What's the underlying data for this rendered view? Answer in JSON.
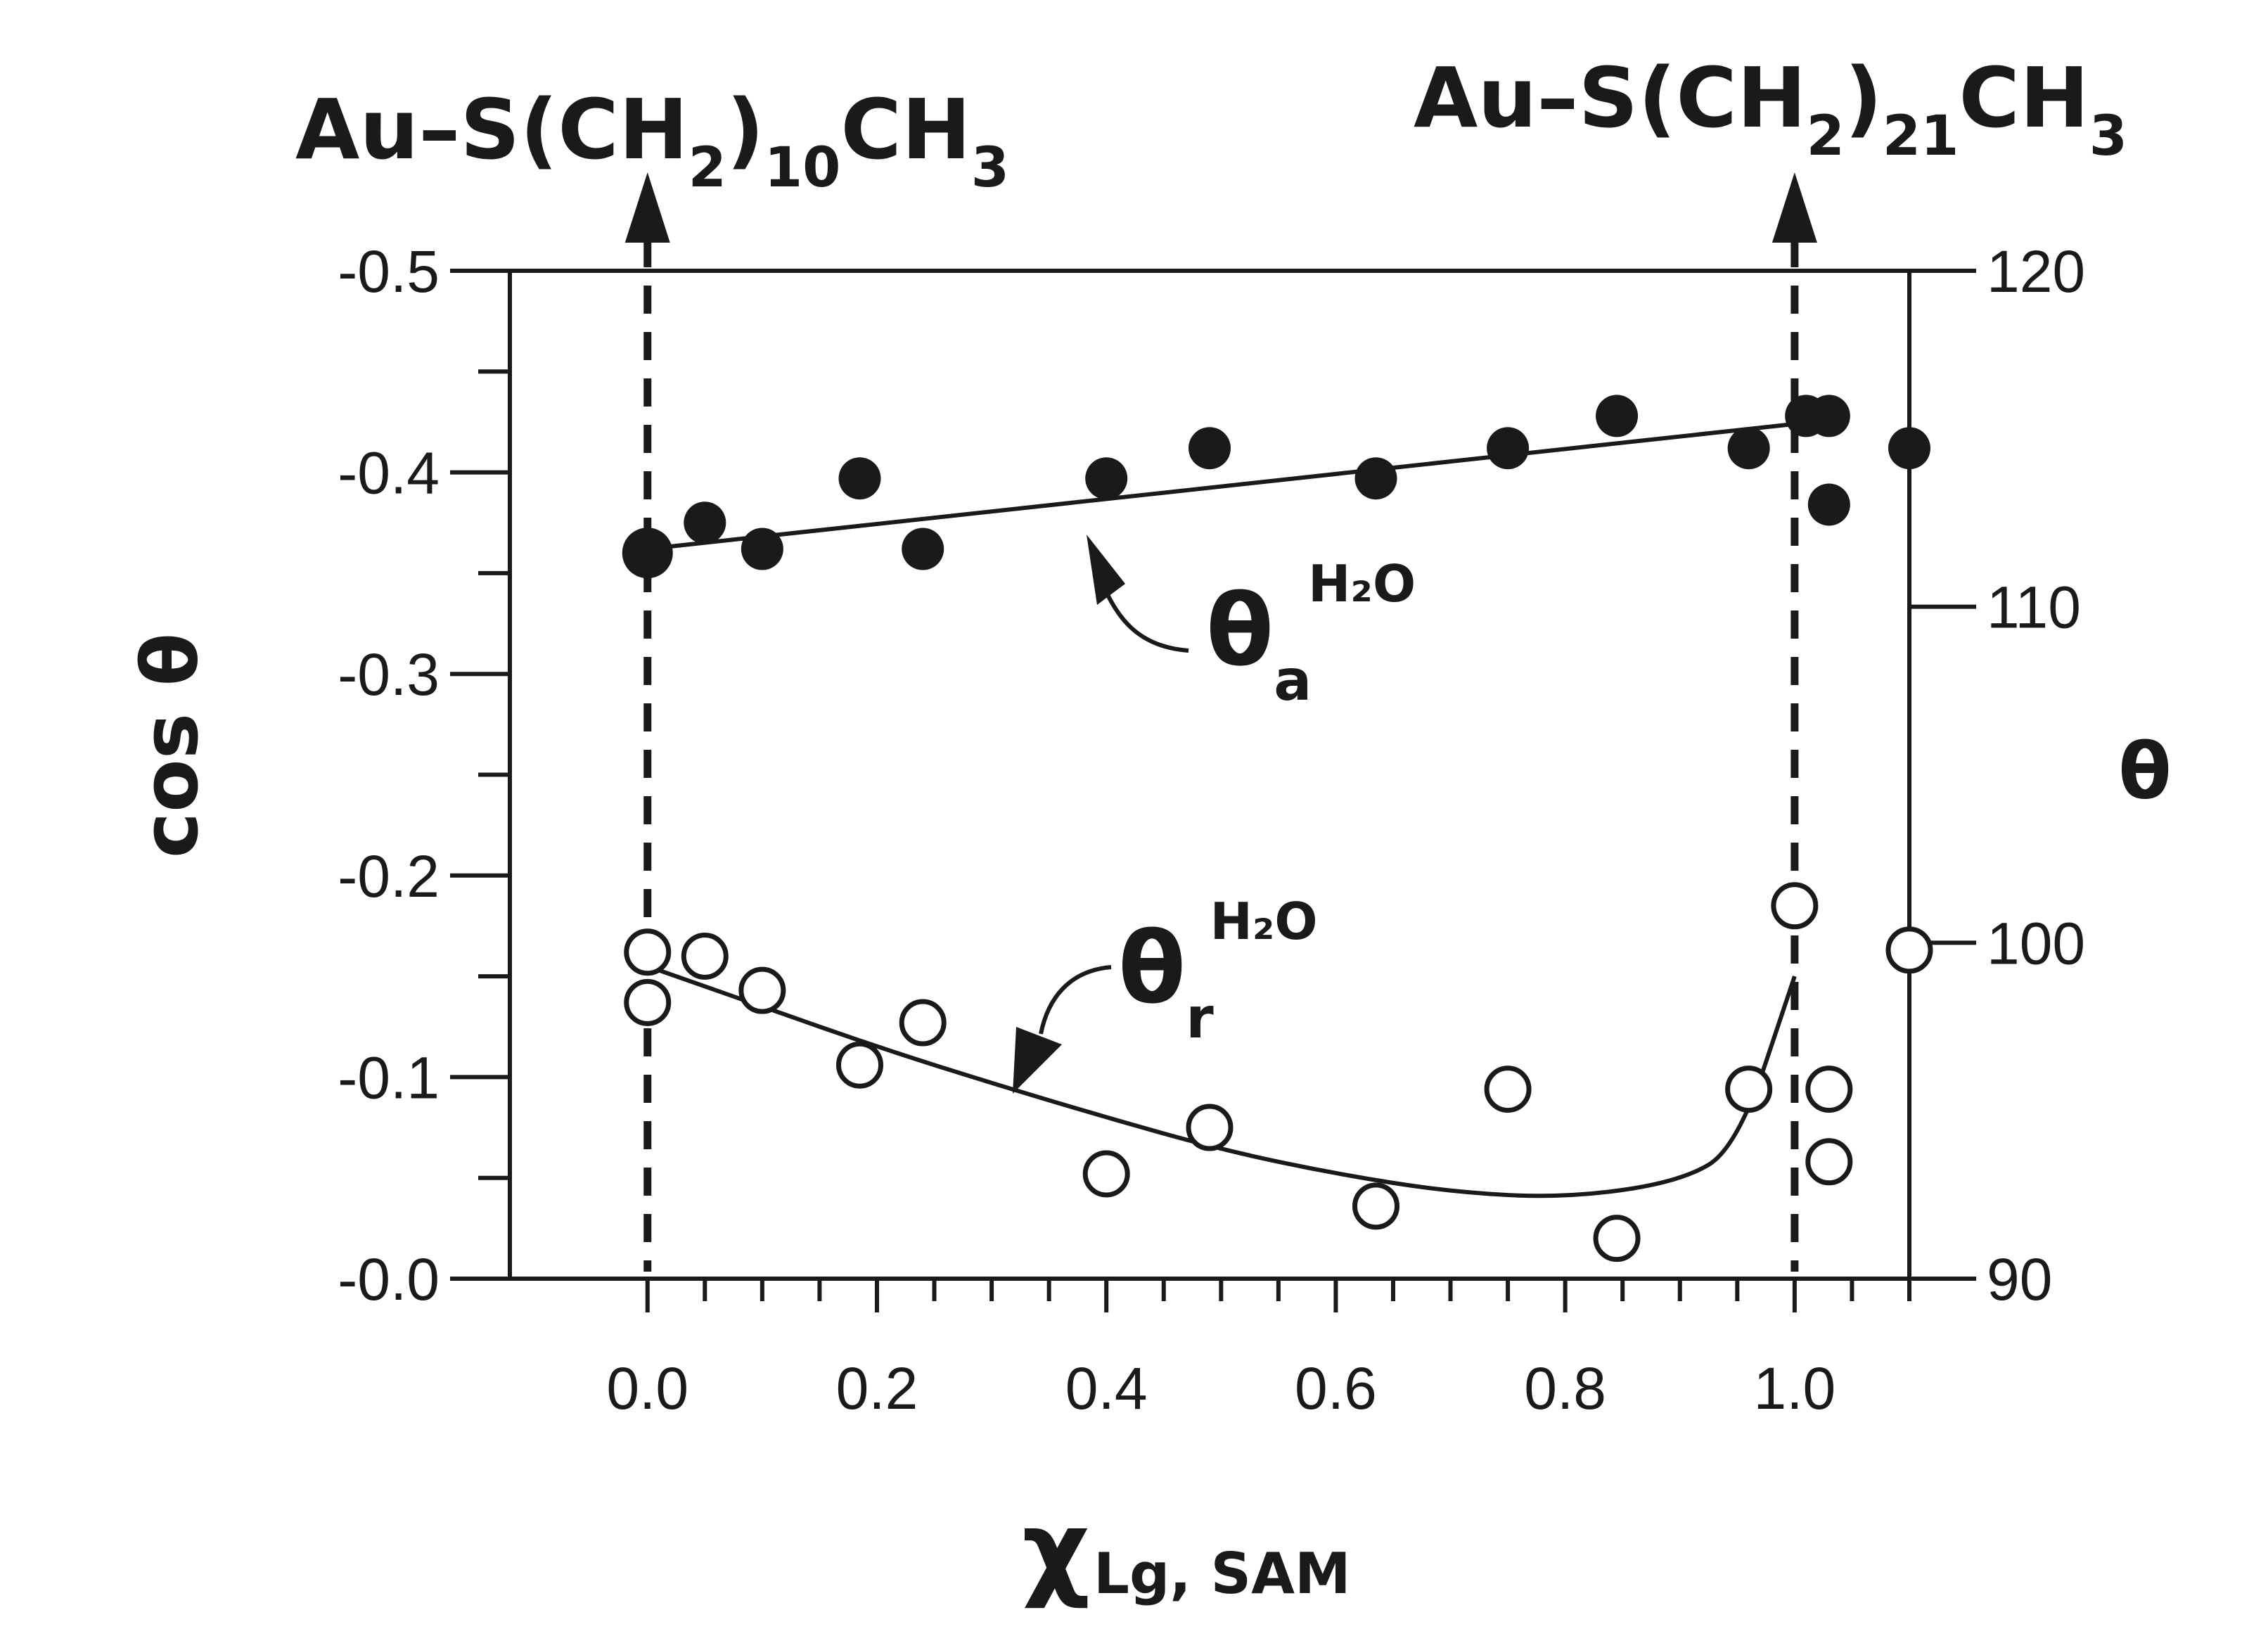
{
  "chart_data": {
    "type": "scatter",
    "x_axis": {
      "label_main": "χ",
      "label_sub": "Lg, SAM",
      "range": [
        -0.12,
        1.1
      ],
      "ticks": [
        0.0,
        0.2,
        0.4,
        0.6,
        0.8,
        1.0
      ],
      "tick_labels": [
        "0.0",
        "0.2",
        "0.4",
        "0.6",
        "0.8",
        "1.0"
      ],
      "minor_step": 0.05
    },
    "y_left": {
      "label": "cos θ",
      "range": [
        0.0,
        -0.5
      ],
      "ticks": [
        -0.5,
        -0.4,
        -0.3,
        -0.2,
        -0.1,
        0.0
      ],
      "tick_labels": [
        "-0.5",
        "-0.4",
        "-0.3",
        "-0.2",
        "-0.1",
        "-0.0"
      ],
      "minor_step": 0.05
    },
    "y_right": {
      "label": "θ",
      "range": [
        90,
        120
      ],
      "ticks": [
        90,
        100,
        110,
        120
      ],
      "tick_labels": [
        "90",
        "100",
        "110",
        "120"
      ]
    },
    "reference_lines": [
      {
        "x": 0.0,
        "label_base": "Au–S(CH",
        "sub1": "2",
        "mid": ")",
        "sub2": "10",
        "tail": "CH",
        "sub3": "3"
      },
      {
        "x": 1.0,
        "label_base": "Au–S(CH",
        "sub1": "2",
        "mid": ")",
        "sub2": "21",
        "tail": "CH",
        "sub3": "3"
      }
    ],
    "series": [
      {
        "symbol": "filled-circle",
        "annotation": {
          "main": "θ",
          "sub": "a",
          "sup": "H₂O"
        },
        "points": [
          [
            0.0,
            -0.36
          ],
          [
            0.05,
            -0.375
          ],
          [
            0.1,
            -0.362
          ],
          [
            0.185,
            -0.397
          ],
          [
            0.24,
            -0.362
          ],
          [
            0.4,
            -0.397
          ],
          [
            0.49,
            -0.412
          ],
          [
            0.635,
            -0.397
          ],
          [
            0.75,
            -0.412
          ],
          [
            0.845,
            -0.428
          ],
          [
            0.96,
            -0.412
          ],
          [
            1.01,
            -0.428
          ],
          [
            1.03,
            -0.428
          ],
          [
            1.03,
            -0.384
          ],
          [
            1.1,
            -0.412
          ]
        ],
        "fit": [
          [
            0.0,
            -0.362
          ],
          [
            1.0,
            -0.424
          ]
        ]
      },
      {
        "symbol": "open-circle",
        "annotation": {
          "main": "θ",
          "sub": "r",
          "sup": "H₂O"
        },
        "points": [
          [
            0.0,
            -0.162
          ],
          [
            0.0,
            -0.137
          ],
          [
            0.05,
            -0.16
          ],
          [
            0.1,
            -0.143
          ],
          [
            0.185,
            -0.106
          ],
          [
            0.24,
            -0.127
          ],
          [
            0.4,
            -0.052
          ],
          [
            0.49,
            -0.075
          ],
          [
            0.635,
            -0.036
          ],
          [
            0.75,
            -0.094
          ],
          [
            0.845,
            -0.02
          ],
          [
            0.96,
            -0.094
          ],
          [
            1.0,
            -0.185
          ],
          [
            1.03,
            -0.094
          ],
          [
            1.03,
            -0.058
          ],
          [
            1.1,
            -0.163
          ]
        ],
        "fit": [
          [
            0.0,
            -0.155
          ],
          [
            0.1,
            -0.135
          ],
          [
            0.2,
            -0.115
          ],
          [
            0.3,
            -0.097
          ],
          [
            0.4,
            -0.08
          ],
          [
            0.5,
            -0.064
          ],
          [
            0.6,
            -0.052
          ],
          [
            0.7,
            -0.043
          ],
          [
            0.8,
            -0.04
          ],
          [
            0.9,
            -0.048
          ],
          [
            0.95,
            -0.065
          ],
          [
            1.0,
            -0.15
          ]
        ]
      }
    ]
  }
}
